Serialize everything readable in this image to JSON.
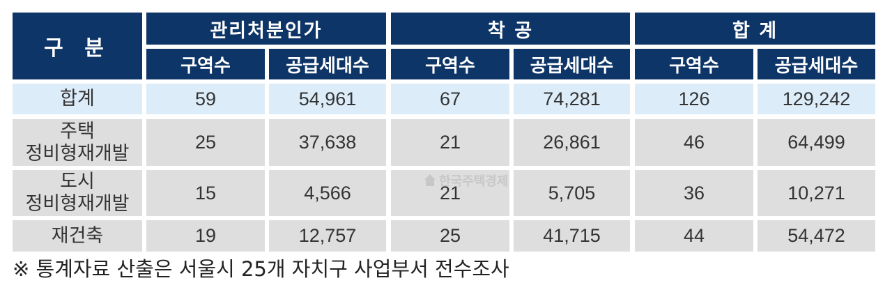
{
  "table": {
    "category_header": "구 분",
    "groups": [
      {
        "label": "관리처분인가",
        "sub": [
          "구역수",
          "공급세대수"
        ]
      },
      {
        "label": "착 공",
        "sub": [
          "구역수",
          "공급세대수"
        ]
      },
      {
        "label": "합 계",
        "sub": [
          "구역수",
          "공급세대수"
        ]
      }
    ],
    "rows": [
      {
        "label_lines": [
          "합계"
        ],
        "values": [
          "59",
          "54,961",
          "67",
          "74,281",
          "126",
          "129,242"
        ]
      },
      {
        "label_lines": [
          "주택",
          "정비형재개발"
        ],
        "values": [
          "25",
          "37,638",
          "21",
          "26,861",
          "46",
          "64,499"
        ]
      },
      {
        "label_lines": [
          "도시",
          "정비형재개발"
        ],
        "values": [
          "15",
          "4,566",
          "21",
          "5,705",
          "36",
          "10,271"
        ]
      },
      {
        "label_lines": [
          "재건축"
        ],
        "values": [
          "19",
          "12,757",
          "25",
          "41,715",
          "44",
          "54,472"
        ]
      }
    ]
  },
  "watermark": {
    "text": "한국주택경제",
    "icon": "house-icon"
  },
  "footnote": "※ 통계자료 산출은 서울시 25개 자치구 사업부서 전수조사",
  "colors": {
    "header_bg": "#0e3567",
    "total_row_bg": "#dcecf9",
    "body_row_bg": "#dedede"
  }
}
